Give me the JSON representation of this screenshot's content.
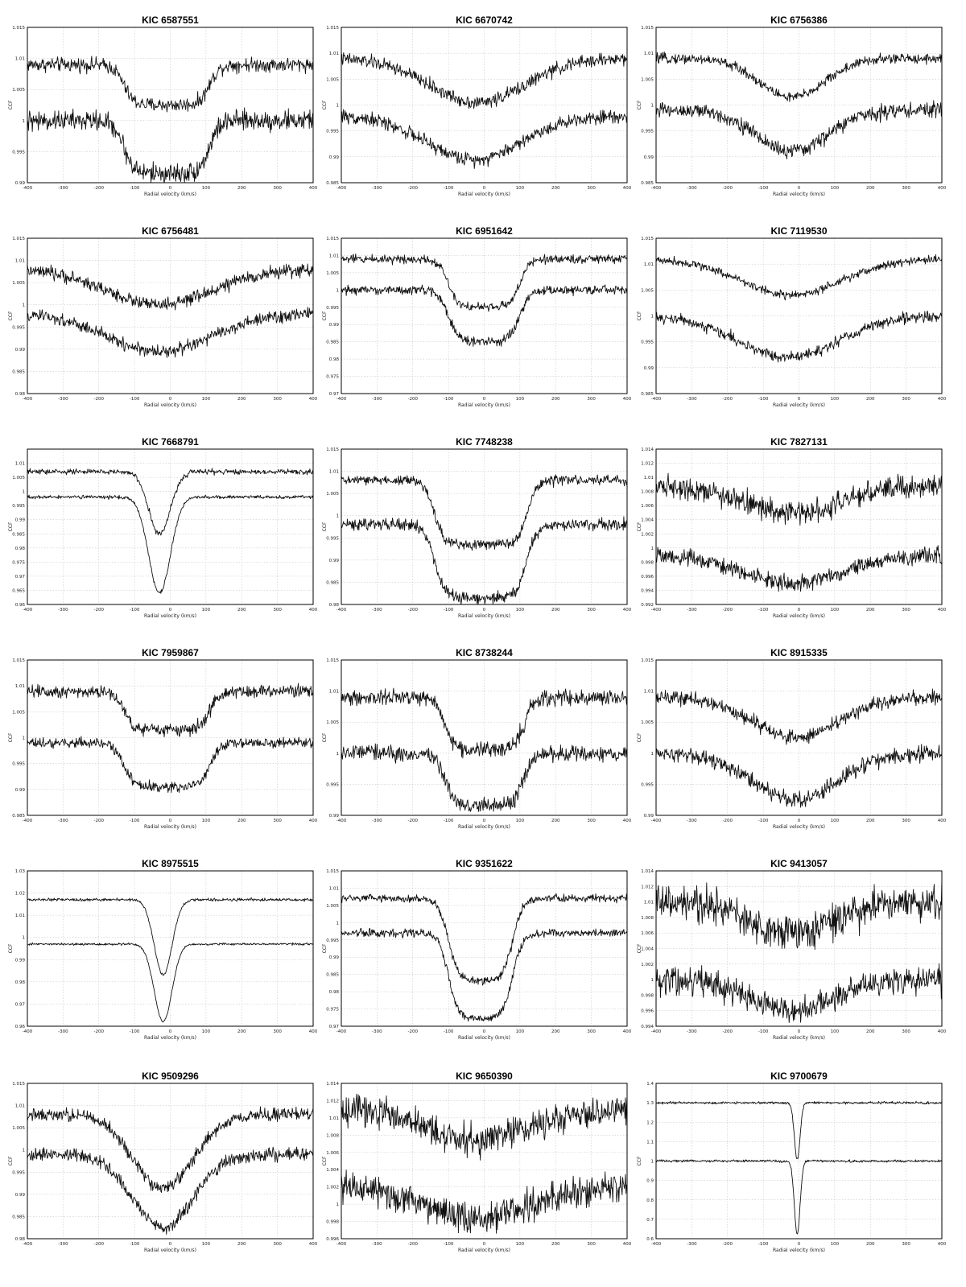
{
  "figure": {
    "rows": 6,
    "cols": 3,
    "x_axis_label": "Radial velocity (km/s)",
    "y_axis_label": "CCF",
    "colors": {
      "line": "#111111",
      "grid": "#bdbdbd",
      "frame": "#000000",
      "background": "#ffffff"
    }
  },
  "chart_data": [
    {
      "type": "line",
      "title": "KIC 6587551",
      "xlim": [
        -400,
        400
      ],
      "ylim": [
        0.99,
        1.015
      ],
      "xticks": [
        "-400",
        "-300",
        "-200",
        "-100",
        "0",
        "100",
        "200",
        "300",
        "400"
      ],
      "yticks": [
        "0.99",
        "0.995",
        "1",
        "1.005",
        "1.01",
        "1.015"
      ],
      "profile": "box",
      "series": [
        {
          "baseline": 1.009,
          "depth": 0.0065,
          "center": -10,
          "width": 120,
          "noise": 0.0007
        },
        {
          "baseline": 1.0,
          "depth": 0.0085,
          "center": -10,
          "width": 120,
          "noise": 0.001
        }
      ]
    },
    {
      "type": "line",
      "title": "KIC 6670742",
      "xlim": [
        -400,
        400
      ],
      "ylim": [
        0.985,
        1.015
      ],
      "xticks": [
        "-400",
        "-300",
        "-200",
        "-100",
        "0",
        "100",
        "200",
        "300",
        "400"
      ],
      "yticks": [
        "0.985",
        "0.99",
        "0.995",
        "1",
        "1.005",
        "1.01",
        "1.015"
      ],
      "profile": "wide",
      "series": [
        {
          "baseline": 1.009,
          "depth": 0.0085,
          "center": -20,
          "width": 190,
          "noise": 0.0008
        },
        {
          "baseline": 0.998,
          "depth": 0.0085,
          "center": -30,
          "width": 190,
          "noise": 0.0008
        }
      ]
    },
    {
      "type": "line",
      "title": "KIC 6756386",
      "xlim": [
        -400,
        400
      ],
      "ylim": [
        0.985,
        1.015
      ],
      "xticks": [
        "-400",
        "-300",
        "-200",
        "-100",
        "0",
        "100",
        "200",
        "300",
        "400"
      ],
      "yticks": [
        "0.985",
        "0.99",
        "0.995",
        "1",
        "1.005",
        "1.01",
        "1.015"
      ],
      "profile": "wide",
      "series": [
        {
          "baseline": 1.009,
          "depth": 0.0075,
          "center": -20,
          "width": 130,
          "noise": 0.0006
        },
        {
          "baseline": 0.999,
          "depth": 0.008,
          "center": -20,
          "width": 140,
          "noise": 0.0009
        }
      ]
    },
    {
      "type": "line",
      "title": "KIC 6756481",
      "xlim": [
        -400,
        400
      ],
      "ylim": [
        0.98,
        1.015
      ],
      "xticks": [
        "-400",
        "-300",
        "-200",
        "-100",
        "0",
        "100",
        "200",
        "300",
        "400"
      ],
      "yticks": [
        "0.98",
        "0.985",
        "0.99",
        "0.995",
        "1",
        "1.005",
        "1.01",
        "1.015"
      ],
      "profile": "wide",
      "series": [
        {
          "baseline": 1.008,
          "depth": 0.008,
          "center": -30,
          "width": 210,
          "noise": 0.0009
        },
        {
          "baseline": 0.998,
          "depth": 0.0085,
          "center": -30,
          "width": 210,
          "noise": 0.0009
        }
      ]
    },
    {
      "type": "line",
      "title": "KIC 6951642",
      "xlim": [
        -400,
        400
      ],
      "ylim": [
        0.97,
        1.015
      ],
      "xticks": [
        "-400",
        "-300",
        "-200",
        "-100",
        "0",
        "100",
        "200",
        "300",
        "400"
      ],
      "yticks": [
        "0.97",
        "0.975",
        "0.98",
        "0.985",
        "0.99",
        "0.995",
        "1",
        "1.005",
        "1.01",
        "1.015"
      ],
      "profile": "box",
      "series": [
        {
          "baseline": 1.009,
          "depth": 0.014,
          "center": 0,
          "width": 100,
          "noise": 0.0008
        },
        {
          "baseline": 1.0,
          "depth": 0.015,
          "center": 0,
          "width": 100,
          "noise": 0.0008
        }
      ]
    },
    {
      "type": "line",
      "title": "KIC 7119530",
      "xlim": [
        -400,
        400
      ],
      "ylim": [
        0.985,
        1.015
      ],
      "xticks": [
        "-400",
        "-300",
        "-200",
        "-100",
        "0",
        "100",
        "200",
        "300",
        "400"
      ],
      "yticks": [
        "0.985",
        "0.99",
        "0.995",
        "1",
        "1.005",
        "1.01",
        "1.015"
      ],
      "profile": "wide",
      "series": [
        {
          "baseline": 1.011,
          "depth": 0.007,
          "center": -20,
          "width": 200,
          "noise": 0.0005
        },
        {
          "baseline": 1.0,
          "depth": 0.008,
          "center": -30,
          "width": 200,
          "noise": 0.0007
        }
      ]
    },
    {
      "type": "line",
      "title": "KIC 7668791",
      "xlim": [
        -400,
        400
      ],
      "ylim": [
        0.96,
        1.015
      ],
      "xticks": [
        "-400",
        "-300",
        "-200",
        "-100",
        "0",
        "100",
        "200",
        "300",
        "400"
      ],
      "yticks": [
        "0.96",
        "0.965",
        "0.97",
        "0.975",
        "0.98",
        "0.985",
        "0.99",
        "0.995",
        "1",
        "1.005",
        "1.01"
      ],
      "profile": "vnarrow",
      "series": [
        {
          "baseline": 1.007,
          "depth": 0.022,
          "center": -30,
          "width": 55,
          "noise": 0.0006
        },
        {
          "baseline": 0.998,
          "depth": 0.034,
          "center": -30,
          "width": 55,
          "noise": 0.0004
        }
      ]
    },
    {
      "type": "line",
      "title": "KIC 7748238",
      "xlim": [
        -400,
        400
      ],
      "ylim": [
        0.98,
        1.015
      ],
      "xticks": [
        "-400",
        "-300",
        "-200",
        "-100",
        "0",
        "100",
        "200",
        "300",
        "400"
      ],
      "yticks": [
        "0.98",
        "0.985",
        "0.99",
        "0.995",
        "1",
        "1.005",
        "1.01",
        "1.015"
      ],
      "profile": "box",
      "series": [
        {
          "baseline": 1.008,
          "depth": 0.0145,
          "center": -10,
          "width": 130,
          "noise": 0.0007
        },
        {
          "baseline": 0.998,
          "depth": 0.0165,
          "center": -10,
          "width": 130,
          "noise": 0.0008
        }
      ]
    },
    {
      "type": "line",
      "title": "KIC 7827131",
      "xlim": [
        -400,
        400
      ],
      "ylim": [
        0.992,
        1.014
      ],
      "xticks": [
        "-400",
        "-300",
        "-200",
        "-100",
        "0",
        "100",
        "200",
        "300",
        "400"
      ],
      "yticks": [
        "0.992",
        "0.994",
        "0.996",
        "0.998",
        "1",
        "1.002",
        "1.004",
        "1.006",
        "1.008",
        "1.01",
        "1.012",
        "1.014"
      ],
      "profile": "wide",
      "series": [
        {
          "baseline": 1.009,
          "depth": 0.004,
          "center": -20,
          "width": 200,
          "noise": 0.001
        },
        {
          "baseline": 0.999,
          "depth": 0.004,
          "center": -20,
          "width": 200,
          "noise": 0.0007
        }
      ]
    },
    {
      "type": "line",
      "title": "KIC 7959867",
      "xlim": [
        -400,
        400
      ],
      "ylim": [
        0.985,
        1.015
      ],
      "xticks": [
        "-400",
        "-300",
        "-200",
        "-100",
        "0",
        "100",
        "200",
        "300",
        "400"
      ],
      "yticks": [
        "0.985",
        "0.99",
        "0.995",
        "1",
        "1.005",
        "1.01",
        "1.015"
      ],
      "profile": "box",
      "series": [
        {
          "baseline": 1.009,
          "depth": 0.0075,
          "center": -10,
          "width": 120,
          "noise": 0.0008
        },
        {
          "baseline": 0.999,
          "depth": 0.0085,
          "center": -10,
          "width": 120,
          "noise": 0.0006
        }
      ]
    },
    {
      "type": "line",
      "title": "KIC 8738244",
      "xlim": [
        -400,
        400
      ],
      "ylim": [
        0.99,
        1.015
      ],
      "xticks": [
        "-400",
        "-300",
        "-200",
        "-100",
        "0",
        "100",
        "200",
        "300",
        "400"
      ],
      "yticks": [
        "0.99",
        "0.995",
        "1",
        "1.005",
        "1.01",
        "1.015"
      ],
      "profile": "box",
      "series": [
        {
          "baseline": 1.009,
          "depth": 0.0085,
          "center": 0,
          "width": 110,
          "noise": 0.0008
        },
        {
          "baseline": 1.0,
          "depth": 0.0085,
          "center": 0,
          "width": 110,
          "noise": 0.0008
        }
      ]
    },
    {
      "type": "line",
      "title": "KIC 8915335",
      "xlim": [
        -400,
        400
      ],
      "ylim": [
        0.99,
        1.015
      ],
      "xticks": [
        "-400",
        "-300",
        "-200",
        "-100",
        "0",
        "100",
        "200",
        "300",
        "400"
      ],
      "yticks": [
        "0.99",
        "0.995",
        "1",
        "1.005",
        "1.01",
        "1.015"
      ],
      "profile": "wide",
      "series": [
        {
          "baseline": 1.009,
          "depth": 0.0065,
          "center": -10,
          "width": 170,
          "noise": 0.0007
        },
        {
          "baseline": 1.0,
          "depth": 0.0075,
          "center": -10,
          "width": 170,
          "noise": 0.0008
        }
      ]
    },
    {
      "type": "line",
      "title": "KIC 8975515",
      "xlim": [
        -400,
        400
      ],
      "ylim": [
        0.96,
        1.03
      ],
      "xticks": [
        "-400",
        "-300",
        "-200",
        "-100",
        "0",
        "100",
        "200",
        "300",
        "400"
      ],
      "yticks": [
        "0.96",
        "0.97",
        "0.98",
        "0.99",
        "1",
        "1.01",
        "1.02",
        "1.03"
      ],
      "profile": "vnarrow",
      "series": [
        {
          "baseline": 1.017,
          "depth": 0.034,
          "center": -20,
          "width": 45,
          "noise": 0.0004
        },
        {
          "baseline": 0.997,
          "depth": 0.035,
          "center": -20,
          "width": 45,
          "noise": 0.0003
        }
      ]
    },
    {
      "type": "line",
      "title": "KIC 9351622",
      "xlim": [
        -400,
        400
      ],
      "ylim": [
        0.97,
        1.015
      ],
      "xticks": [
        "-400",
        "-300",
        "-200",
        "-100",
        "0",
        "100",
        "200",
        "300",
        "400"
      ],
      "yticks": [
        "0.97",
        "0.975",
        "0.98",
        "0.985",
        "0.99",
        "0.995",
        "1",
        "1.005",
        "1.01",
        "1.015"
      ],
      "profile": "box",
      "series": [
        {
          "baseline": 1.007,
          "depth": 0.024,
          "center": -10,
          "width": 90,
          "noise": 0.0007
        },
        {
          "baseline": 0.997,
          "depth": 0.025,
          "center": -10,
          "width": 90,
          "noise": 0.0007
        }
      ]
    },
    {
      "type": "line",
      "title": "KIC 9413057",
      "xlim": [
        -400,
        400
      ],
      "ylim": [
        0.994,
        1.014
      ],
      "xticks": [
        "-400",
        "-300",
        "-200",
        "-100",
        "0",
        "100",
        "200",
        "300",
        "400"
      ],
      "yticks": [
        "0.994",
        "0.996",
        "0.998",
        "1",
        "1.002",
        "1.004",
        "1.006",
        "1.008",
        "1.01",
        "1.012",
        "1.014"
      ],
      "profile": "wide",
      "series": [
        {
          "baseline": 1.01,
          "depth": 0.004,
          "center": -20,
          "width": 170,
          "noise": 0.0014
        },
        {
          "baseline": 1.0,
          "depth": 0.004,
          "center": -20,
          "width": 170,
          "noise": 0.0011
        }
      ]
    },
    {
      "type": "line",
      "title": "KIC 9509296",
      "xlim": [
        -400,
        400
      ],
      "ylim": [
        0.98,
        1.015
      ],
      "xticks": [
        "-400",
        "-300",
        "-200",
        "-100",
        "0",
        "100",
        "200",
        "300",
        "400"
      ],
      "yticks": [
        "0.98",
        "0.985",
        "0.99",
        "0.995",
        "1",
        "1.005",
        "1.01",
        "1.015"
      ],
      "profile": "wide",
      "series": [
        {
          "baseline": 1.008,
          "depth": 0.0165,
          "center": -20,
          "width": 120,
          "noise": 0.0009
        },
        {
          "baseline": 0.999,
          "depth": 0.0165,
          "center": -20,
          "width": 120,
          "noise": 0.0009
        }
      ]
    },
    {
      "type": "line",
      "title": "KIC 9650390",
      "xlim": [
        -400,
        400
      ],
      "ylim": [
        0.996,
        1.014
      ],
      "xticks": [
        "-400",
        "-300",
        "-200",
        "-100",
        "0",
        "100",
        "200",
        "300",
        "400"
      ],
      "yticks": [
        "0.996",
        "0.998",
        "1",
        "1.002",
        "1.004",
        "1.006",
        "1.008",
        "1.01",
        "1.012",
        "1.014"
      ],
      "profile": "wide",
      "series": [
        {
          "baseline": 1.011,
          "depth": 0.0035,
          "center": -20,
          "width": 210,
          "noise": 0.0011
        },
        {
          "baseline": 1.002,
          "depth": 0.0035,
          "center": -20,
          "width": 210,
          "noise": 0.0011
        }
      ]
    },
    {
      "type": "line",
      "title": "KIC 9700679",
      "xlim": [
        -400,
        400
      ],
      "ylim": [
        0.6,
        1.4
      ],
      "xticks": [
        "-400",
        "-300",
        "-200",
        "-100",
        "0",
        "100",
        "200",
        "300",
        "400"
      ],
      "yticks": [
        "0.6",
        "0.7",
        "0.8",
        "0.9",
        "1",
        "1.1",
        "1.2",
        "1.3",
        "1.4"
      ],
      "profile": "spike",
      "series": [
        {
          "baseline": 1.3,
          "depth": 0.29,
          "center": -5,
          "width": 8,
          "noise": 0.004
        },
        {
          "baseline": 1.0,
          "depth": 0.38,
          "center": -5,
          "width": 8,
          "noise": 0.004
        }
      ]
    }
  ]
}
